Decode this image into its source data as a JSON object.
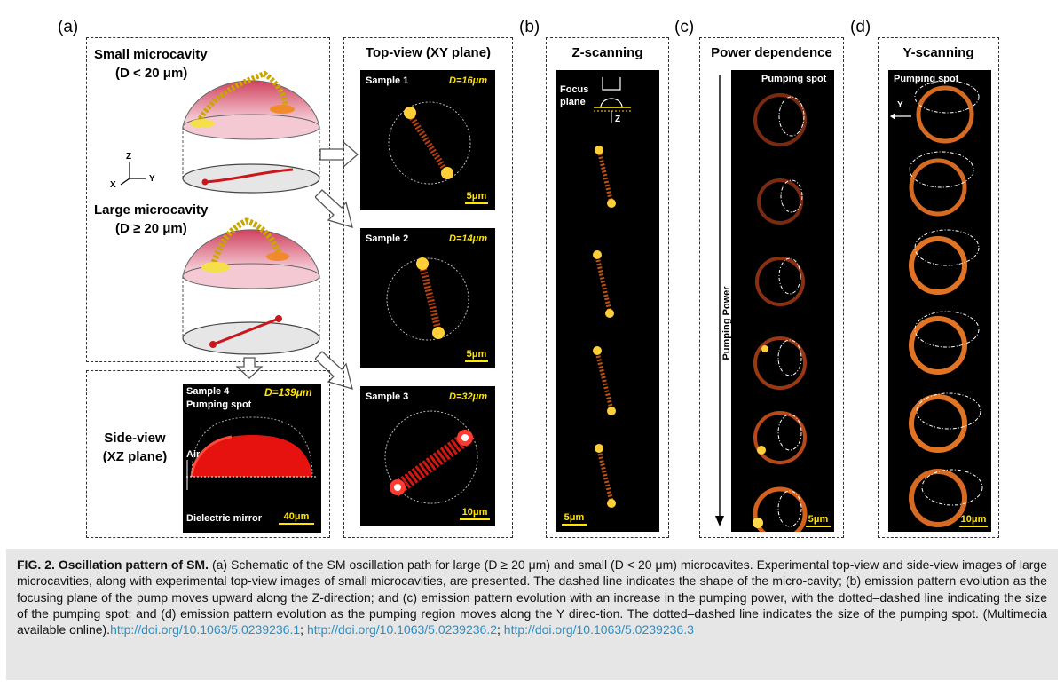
{
  "panel_labels": {
    "a": "(a)",
    "b": "(b)",
    "c": "(c)",
    "d": "(d)"
  },
  "schematic": {
    "small_title_line1": "Small microcavity",
    "small_title_line2": "(D < 20 μm)",
    "large_title_line1": "Large microcavity",
    "large_title_line2": "(D ≥ 20 μm)",
    "axis_z": "Z",
    "axis_x": "X",
    "axis_y": "Y"
  },
  "side_view": {
    "title_line1": "Side-view",
    "title_line2": "(XZ plane)",
    "sample": "Sample 4",
    "diameter": "D=139μm",
    "pump": "Pumping spot",
    "air": "Air",
    "mirror": "Dielectric mirror",
    "scale": "40μm"
  },
  "top_view": {
    "title": "Top-view (XY plane)",
    "images": [
      {
        "sample": "Sample 1",
        "diameter": "D=16μm",
        "scale": "5μm"
      },
      {
        "sample": "Sample 2",
        "diameter": "D=14μm",
        "scale": "5μm"
      },
      {
        "sample": "Sample 3",
        "diameter": "D=32μm",
        "scale": "10μm"
      }
    ]
  },
  "z_scan": {
    "title": "Z-scanning",
    "focus_line1": "Focus",
    "focus_line2": "plane",
    "axis": "Z",
    "scale": "5μm"
  },
  "power": {
    "title": "Power dependence",
    "pump": "Pumping spot",
    "axis_label": "Pumping Power",
    "scale": "5μm"
  },
  "y_scan": {
    "title": "Y-scanning",
    "pump": "Pumping spot",
    "axis": "Y",
    "scale": "10μm"
  },
  "caption": {
    "label": "FIG. 2. Oscillation pattern of SM.",
    "text": " (a) Schematic of the SM oscillation path for large (D ≥ 20 μm) and small (D < 20 μm) microcavites. Experimental top-view and side-view images of large microcavities, along with experimental top-view images of small microcavities, are presented. The dashed line indicates the shape of the micro-cavity; (b) emission pattern evolution as the focusing plane of the pump moves upward along the Z-direction; and (c) emission pattern evolution with an increase in the pumping power, with the dotted–dashed line indicating the size of the pumping spot; and (d) emission pattern evolution as the pumping region moves along the Y direc-tion. The dotted–dashed line indicates the size of the pumping spot. (Multimedia available online).",
    "links": [
      "http://doi.org/10.1063/5.0239236.1",
      "http://doi.org/10.1063/5.0239236.2",
      "http://doi.org/10.1063/5.0239236.3"
    ],
    "separator": "; "
  }
}
